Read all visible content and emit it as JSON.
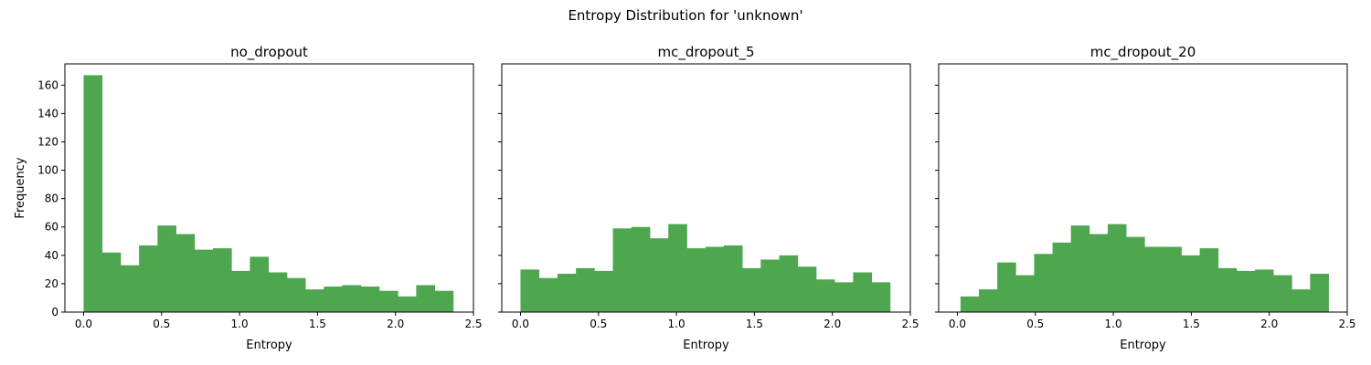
{
  "suptitle": "Entropy Distribution for 'unknown'",
  "bar_color": "#4ea64e",
  "shared_ylabel": "Frequency",
  "chart_data": [
    {
      "type": "bar",
      "title": "no_dropout",
      "xlabel": "Entropy",
      "ylabel": "Frequency",
      "xlim": [
        -0.12,
        2.5
      ],
      "ylim": [
        0,
        175
      ],
      "xticks": [
        "0.0",
        "0.5",
        "1.0",
        "1.5",
        "2.0",
        "2.5"
      ],
      "yticks": [
        "0",
        "20",
        "40",
        "60",
        "80",
        "100",
        "120",
        "140",
        "160"
      ],
      "bin_start": 0.0,
      "bin_width": 0.1185,
      "values": [
        167,
        42,
        33,
        47,
        61,
        55,
        44,
        45,
        29,
        39,
        28,
        24,
        16,
        18,
        19,
        18,
        15,
        11,
        19,
        15
      ],
      "grid": false
    },
    {
      "type": "bar",
      "title": "mc_dropout_5",
      "xlabel": "Entropy",
      "xlim": [
        -0.12,
        2.5
      ],
      "ylim": [
        0,
        175
      ],
      "xticks": [
        "0.0",
        "0.5",
        "1.0",
        "1.5",
        "2.0",
        "2.5"
      ],
      "bin_start": 0.0,
      "bin_width": 0.1185,
      "values": [
        30,
        24,
        27,
        31,
        29,
        59,
        60,
        52,
        62,
        45,
        46,
        47,
        31,
        37,
        40,
        32,
        23,
        21,
        28,
        21
      ],
      "grid": false
    },
    {
      "type": "bar",
      "title": "mc_dropout_20",
      "xlabel": "Entropy",
      "xlim": [
        -0.12,
        2.5
      ],
      "ylim": [
        0,
        175
      ],
      "xticks": [
        "0.0",
        "0.5",
        "1.0",
        "1.5",
        "2.0",
        "2.5"
      ],
      "bin_start": 0.02,
      "bin_width": 0.118,
      "values": [
        11,
        16,
        35,
        26,
        41,
        49,
        61,
        55,
        62,
        53,
        46,
        46,
        40,
        45,
        31,
        29,
        30,
        26,
        16,
        27
      ],
      "grid": false
    }
  ]
}
